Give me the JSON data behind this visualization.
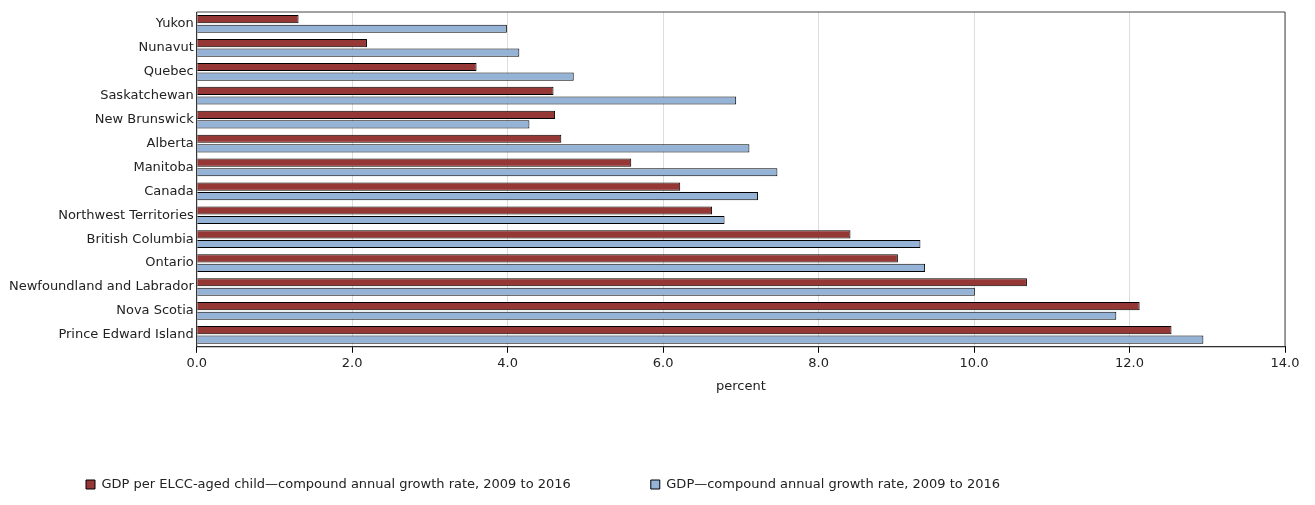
{
  "chart_data": {
    "type": "bar",
    "orientation": "horizontal",
    "xlabel": "percent",
    "categories": [
      "Yukon",
      "Nunavut",
      "Quebec",
      "Saskatchewan",
      "New Brunswick",
      "Alberta",
      "Manitoba",
      "Canada",
      "Northwest Territories",
      "British Columbia",
      "Ontario",
      "Newfoundland and Labrador",
      "Nova Scotia",
      "Prince Edward Island"
    ],
    "series": [
      {
        "name": "GDP per ELCC-aged child—compound annual growth rate, 2009 to 2016",
        "color": "#953735",
        "values": [
          1.31,
          2.19,
          3.6,
          4.59,
          4.61,
          4.69,
          5.59,
          6.22,
          6.63,
          8.41,
          9.02,
          10.68,
          12.13,
          12.54
        ]
      },
      {
        "name": "GDP—compound annual growth rate, 2009 to 2016",
        "color": "#95b3d7",
        "values": [
          3.99,
          4.15,
          4.85,
          6.94,
          4.28,
          7.11,
          7.47,
          7.22,
          6.79,
          9.31,
          9.37,
          10.01,
          11.83,
          12.95
        ]
      }
    ],
    "xlim": [
      0,
      14
    ],
    "xticks": [
      {
        "value": 0,
        "label": "0.0"
      },
      {
        "value": 2,
        "label": "2.0"
      },
      {
        "value": 4,
        "label": "4.0"
      },
      {
        "value": 6,
        "label": "6.0"
      },
      {
        "value": 8,
        "label": "8.0"
      },
      {
        "value": 10,
        "label": "10.0"
      },
      {
        "value": 12,
        "label": "12.0"
      },
      {
        "value": 14,
        "label": "14.0"
      }
    ],
    "grid": "x",
    "legend": "bottom"
  }
}
